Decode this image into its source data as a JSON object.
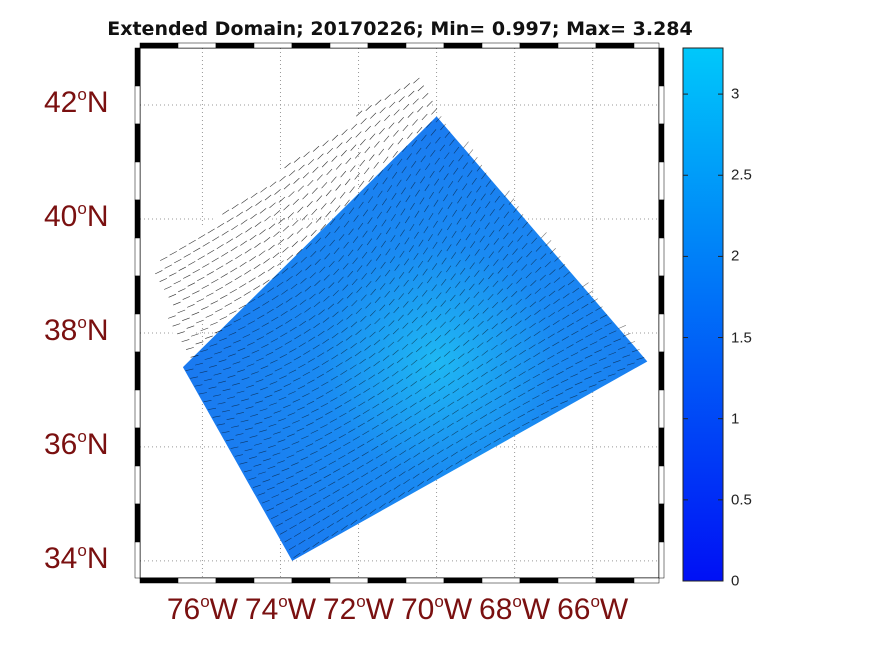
{
  "title": "Extended Domain; 20170226; Min= 0.997; Max= 3.284",
  "colors": {
    "label_color": "#7a1010",
    "ocean_fill": "#1a78f0",
    "max_center": "#1fb8f3",
    "colormap_low": "#0010f5",
    "colormap_high": "#00c8fa",
    "grid": "#999999",
    "vectors": "#000000"
  },
  "map": {
    "lat_labels": [
      {
        "value": 42,
        "deg": "o",
        "hemi": "N"
      },
      {
        "value": 40,
        "deg": "o",
        "hemi": "N"
      },
      {
        "value": 38,
        "deg": "o",
        "hemi": "N"
      },
      {
        "value": 36,
        "deg": "o",
        "hemi": "N"
      },
      {
        "value": 34,
        "deg": "o",
        "hemi": "N"
      }
    ],
    "lon_labels": [
      {
        "value": 76,
        "deg": "o",
        "hemi": "W"
      },
      {
        "value": 74,
        "deg": "o",
        "hemi": "W"
      },
      {
        "value": 72,
        "deg": "o",
        "hemi": "W"
      },
      {
        "value": 70,
        "deg": "o",
        "hemi": "W"
      },
      {
        "value": 68,
        "deg": "o",
        "hemi": "W"
      },
      {
        "value": 66,
        "deg": "o",
        "hemi": "W"
      }
    ],
    "lat_range": [
      33.7,
      43.0
    ],
    "lon_range": [
      -77.6,
      -64.3
    ],
    "data_region_corners": [
      {
        "lon": -73.7,
        "lat": 34.0
      },
      {
        "lon": -64.6,
        "lat": 37.5
      },
      {
        "lon": -70.0,
        "lat": 41.8
      },
      {
        "lon": -76.5,
        "lat": 37.4
      }
    ],
    "vector_region_corners": [
      {
        "lon": -76.5,
        "lat": 37.4
      },
      {
        "lon": -77.3,
        "lat": 39.2
      },
      {
        "lon": -70.5,
        "lat": 42.6
      },
      {
        "lon": -70.0,
        "lat": 41.8
      }
    ],
    "field_min": 0.997,
    "field_max": 3.284,
    "max_location": {
      "lon": -70.0,
      "lat": 37.5
    }
  },
  "colorbar": {
    "min": 0,
    "max": 3.284,
    "ticks": [
      "0",
      "0.5",
      "1",
      "1.5",
      "2",
      "2.5",
      "3"
    ],
    "tick_values": [
      0,
      0.5,
      1,
      1.5,
      2,
      2.5,
      3
    ]
  }
}
